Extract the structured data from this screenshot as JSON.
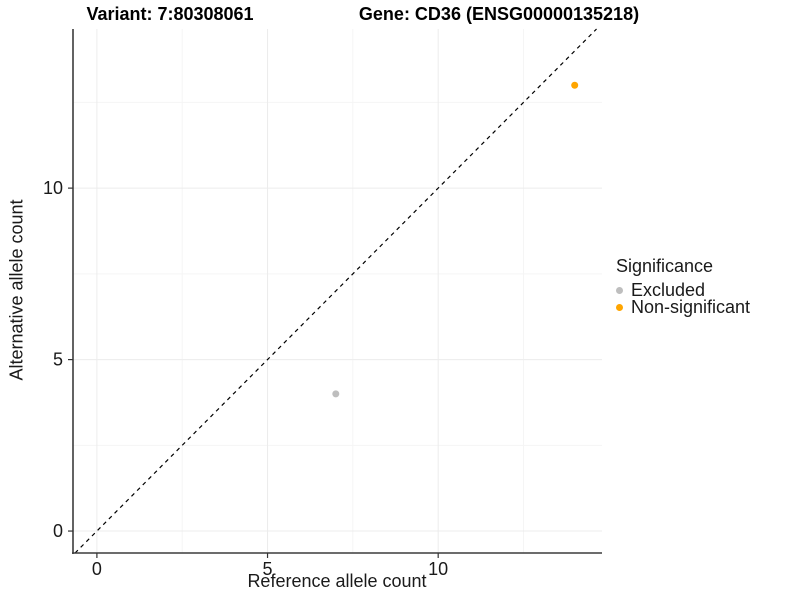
{
  "chart_data": {
    "type": "scatter",
    "title_left": "Variant: 7:80308061",
    "title_right": "Gene: CD36 (ENSG00000135218)",
    "xlabel": "Reference allele count",
    "ylabel": "Alternative allele count",
    "xlim": [
      -0.7,
      14.8
    ],
    "ylim": [
      -0.64,
      14.64
    ],
    "x_ticks": [
      0,
      5,
      10
    ],
    "y_ticks": [
      0,
      5,
      10
    ],
    "x_minor_ticks": [
      2.5,
      7.5,
      12.5
    ],
    "y_minor_ticks": [
      2.5,
      7.5,
      12.5
    ],
    "grid": "major+minor",
    "identity_line": {
      "type": "y=x",
      "style": "dashed",
      "color": "#000000"
    },
    "legend": {
      "title": "Significance",
      "position": "right"
    },
    "series": [
      {
        "name": "Excluded",
        "color": "#BEBEBE",
        "points": [
          {
            "x": 7,
            "y": 4
          }
        ]
      },
      {
        "name": "Non-significant",
        "color": "#FFA500",
        "points": [
          {
            "x": 14,
            "y": 13
          }
        ]
      }
    ]
  },
  "colors": {
    "background": "#FFFFFF",
    "grid_major": "#ECECEC",
    "grid_minor": "#F5F5F5",
    "axis_line": "#3C3C3C",
    "tick_mark": "#333333",
    "tick_label": "#1A1A1A"
  }
}
